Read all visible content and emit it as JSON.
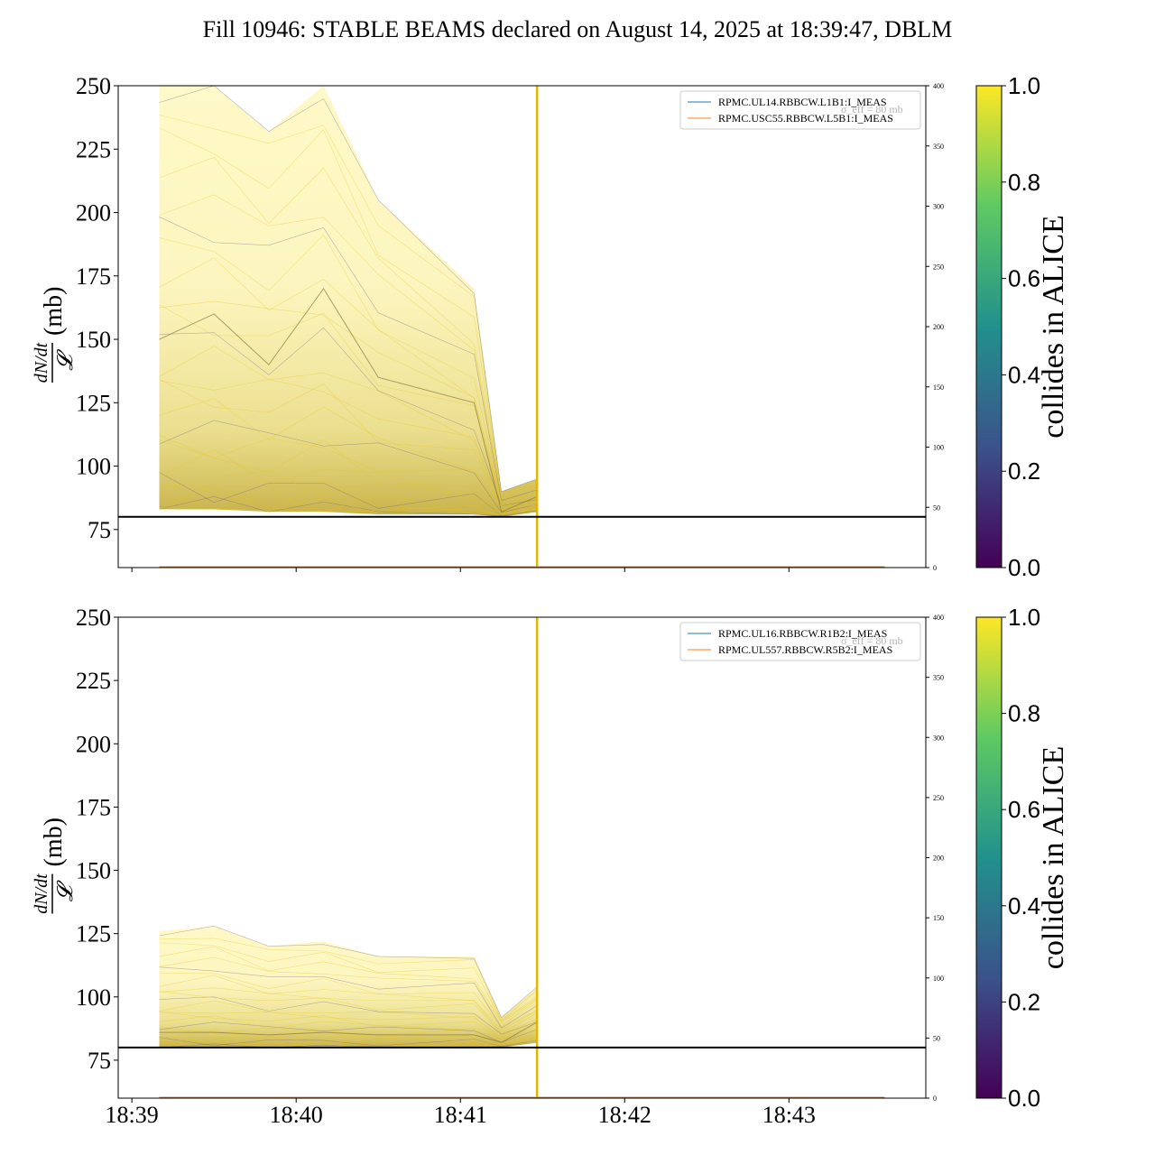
{
  "title": "Fill 10946: STABLE BEAMS declared on August 14, 2025 at 18:39:47, DBLM",
  "colorbar_label": "collides in ALICE",
  "colors": {
    "viridis": [
      "#440154",
      "#3b528b",
      "#21918c",
      "#5ec962",
      "#fde725"
    ],
    "legend_blue": "#1f77b4",
    "legend_orange": "#ff7f0e",
    "threshold": "#000000"
  },
  "chart_data": [
    {
      "type": "line",
      "ylabel_num": "dN/dt",
      "ylabel_den": "𝓛",
      "ylabel_unit": "(mb)",
      "ylim": [
        60,
        250
      ],
      "yticks": [
        75,
        100,
        125,
        150,
        175,
        200,
        225,
        250
      ],
      "right_ylim": [
        0,
        400
      ],
      "right_yticks": [
        0,
        50,
        100,
        150,
        200,
        250,
        300,
        350,
        400
      ],
      "x_range": [
        "18:38:55",
        "18:43:50"
      ],
      "xticks": [
        "18:39",
        "18:40",
        "18:41",
        "18:42",
        "18:43"
      ],
      "show_xticklabels": false,
      "threshold_mb": 80,
      "threshold_label": "σ_eff = 80 mb",
      "legend_position": "top-right",
      "legend": [
        "RPMC.UL14.RBBCW.L1B1:I_MEAS",
        "RPMC.USC55.RBBCW.L5B1:I_MEAS"
      ],
      "band_times": [
        "18:39:10",
        "18:39:30",
        "18:39:50",
        "18:40:10",
        "18:40:30",
        "18:41:05",
        "18:41:15",
        "18:41:28"
      ],
      "band_low": [
        83,
        83,
        82,
        82,
        81,
        81,
        80,
        82
      ],
      "band_high": [
        250,
        250,
        232,
        250,
        205,
        170,
        90,
        95
      ],
      "mean_curve": [
        150,
        160,
        140,
        170,
        135,
        125,
        82,
        88
      ],
      "spike_time": "18:41:28",
      "current_level_right_axis": 0
    },
    {
      "type": "line",
      "ylabel_num": "dN/dt",
      "ylabel_den": "𝓛",
      "ylabel_unit": "(mb)",
      "ylim": [
        60,
        250
      ],
      "yticks": [
        75,
        100,
        125,
        150,
        175,
        200,
        225,
        250
      ],
      "right_ylim": [
        0,
        400
      ],
      "right_yticks": [
        0,
        50,
        100,
        150,
        200,
        250,
        300,
        350,
        400
      ],
      "x_range": [
        "18:38:55",
        "18:43:50"
      ],
      "xticks": [
        "18:39",
        "18:40",
        "18:41",
        "18:42",
        "18:43"
      ],
      "show_xticklabels": true,
      "threshold_mb": 80,
      "threshold_label": "σ_eff = 80 mb",
      "legend_position": "top-right",
      "legend": [
        "RPMC.UL16.RBBCW.R1B2:I_MEAS",
        "RPMC.UL557.RBBCW.R5B2:I_MEAS"
      ],
      "band_times": [
        "18:39:10",
        "18:39:30",
        "18:39:50",
        "18:40:10",
        "18:40:30",
        "18:41:05",
        "18:41:15",
        "18:41:28"
      ],
      "band_low": [
        80,
        80,
        80,
        80,
        80,
        80,
        80,
        82
      ],
      "band_high": [
        126,
        128,
        120,
        122,
        116,
        116,
        92,
        104
      ],
      "mean_curve": [
        86,
        86,
        85,
        86,
        85,
        85,
        82,
        90
      ],
      "spike_time": "18:41:28",
      "current_level_right_axis": 0
    }
  ],
  "colorbar": {
    "range": [
      0,
      1
    ],
    "ticks": [
      "0.0",
      "0.2",
      "0.4",
      "0.6",
      "0.8",
      "1.0"
    ]
  }
}
